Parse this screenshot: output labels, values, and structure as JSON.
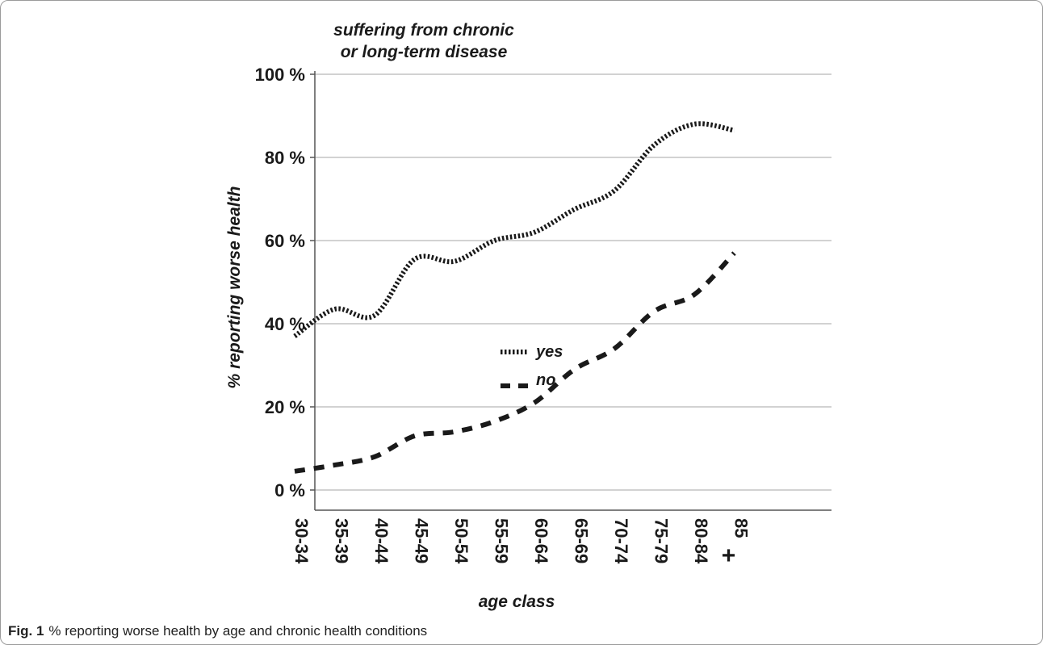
{
  "caption": {
    "label": "Fig. 1",
    "text": "% reporting worse health by age and chronic health conditions"
  },
  "chart_data": {
    "type": "line",
    "title": "suffering from chronic or long-term disease",
    "title_lines": [
      "suffering from chronic",
      "or long-term disease"
    ],
    "xlabel": "age class",
    "ylabel": "% reporting worse health",
    "categories": [
      "30-34",
      "35-39",
      "40-44",
      "45-49",
      "50-54",
      "55-59",
      "60-64",
      "65-69",
      "70-74",
      "75-79",
      "80-84",
      "85 +"
    ],
    "ylim": [
      0,
      100
    ],
    "yticks": [
      0,
      20,
      40,
      60,
      80,
      100
    ],
    "ytick_labels": [
      "0 %",
      "20 %",
      "40 %",
      "60 %",
      "80 %",
      "100 %"
    ],
    "grid": "horizontal",
    "legend_position": "center",
    "series": [
      {
        "name": "yes",
        "style": "dotted",
        "color": "#1a1a1a",
        "values": [
          37,
          43.5,
          42,
          55.5,
          55,
          60,
          62,
          67.5,
          72,
          83,
          88,
          86.5
        ]
      },
      {
        "name": "no",
        "style": "dashed",
        "color": "#1a1a1a",
        "values": [
          4.5,
          6,
          8,
          13,
          14,
          16.5,
          21,
          29,
          34,
          43,
          47,
          57
        ]
      }
    ]
  }
}
